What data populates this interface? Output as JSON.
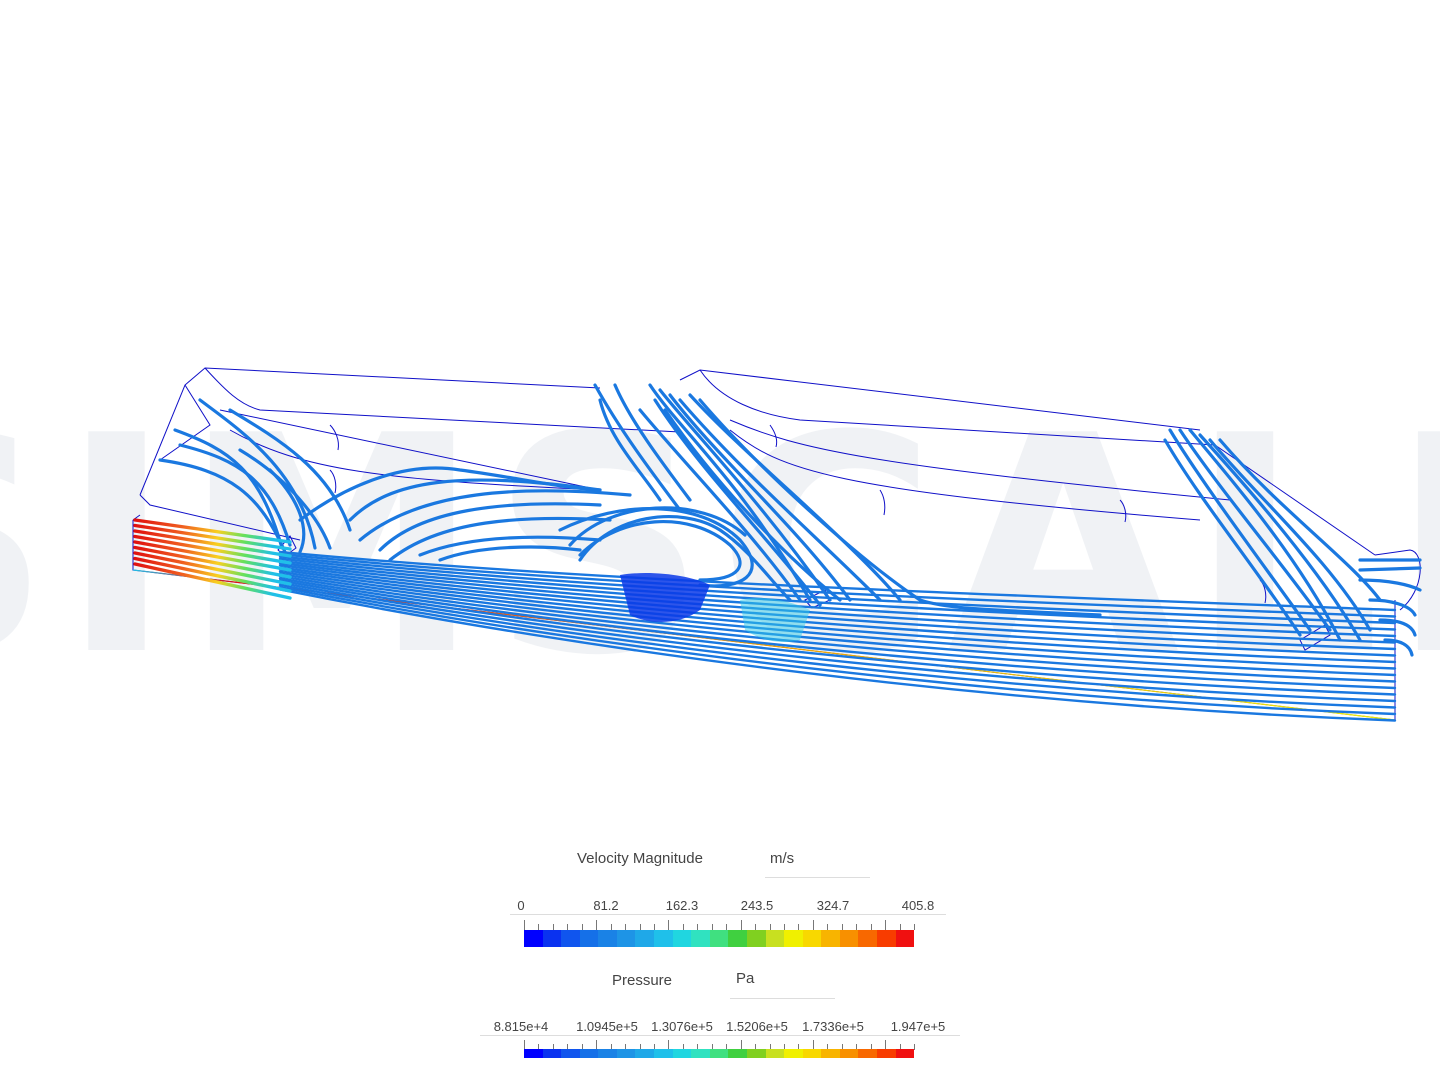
{
  "watermark": {
    "text": "SIMSCALE"
  },
  "legends": [
    {
      "title": "Velocity Magnitude",
      "unit": "m/s",
      "ticks": [
        "0",
        "81.2",
        "162.3",
        "243.5",
        "324.7",
        "405.8"
      ]
    },
    {
      "title": "Pressure",
      "unit": "Pa",
      "ticks": [
        "8.815e+4",
        "1.0945e+5",
        "1.3076e+5",
        "1.5206e+5",
        "1.7336e+5",
        "1.947e+5"
      ]
    }
  ],
  "colormap": [
    "#0000ff",
    "#0a32f0",
    "#1055ee",
    "#1570e8",
    "#1a82e6",
    "#1e94e6",
    "#1fa8e8",
    "#1fc0ea",
    "#20d6e0",
    "#30e2c0",
    "#40e080",
    "#40d040",
    "#80d020",
    "#c8e020",
    "#f0f000",
    "#f8d800",
    "#f8b400",
    "#f89000",
    "#f86800",
    "#f83c00",
    "#f01010"
  ],
  "colors": {
    "streamline": "#1a78e0",
    "outline": "#1010c8",
    "vortex_core": "#0a3ae8",
    "inlet": "#e01010"
  }
}
